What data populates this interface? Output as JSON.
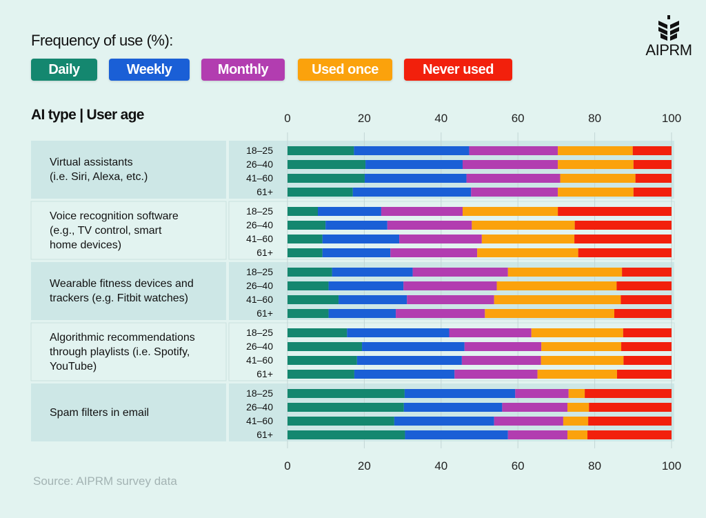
{
  "legend_title": "Frequency of use  (%):",
  "logo_text": "AIPRM",
  "axis_heading": "AI type  |  User age",
  "source": "Source: AIPRM survey data",
  "chart_data": {
    "type": "bar",
    "orientation": "horizontal",
    "stacked": true,
    "xlim": [
      0,
      100
    ],
    "xticks": [
      "0",
      "20",
      "40",
      "60",
      "80",
      "100"
    ],
    "legend_placement": "top-left",
    "series_names": [
      "Daily",
      "Weekly",
      "Monthly",
      "Used once",
      "Never used"
    ],
    "colors": [
      "#14876f",
      "#1a5fd6",
      "#b23db0",
      "#fba20c",
      "#f2200c"
    ],
    "groups": [
      {
        "label": "Virtual assistants (i.e. Siri, Alexa, etc.)",
        "lines": [
          "Virtual assistants",
          "(i.e. Siri, Alexa, etc.)"
        ],
        "rows": [
          {
            "age": "18–25",
            "values": [
              17.3,
              30.0,
              23.1,
              19.5,
              10.1
            ]
          },
          {
            "age": "26–40",
            "values": [
              20.3,
              25.3,
              24.8,
              19.7,
              9.9
            ]
          },
          {
            "age": "41–60",
            "values": [
              20.1,
              26.5,
              24.4,
              19.6,
              9.4
            ]
          },
          {
            "age": "61+",
            "values": [
              17.0,
              30.8,
              22.6,
              19.7,
              9.9
            ]
          }
        ]
      },
      {
        "label": "Voice recognition software (e.g., TV control, smart home devices)",
        "lines": [
          "Voice recognition software",
          "(e.g., TV control, smart",
          "home devices)"
        ],
        "rows": [
          {
            "age": "18–25",
            "values": [
              7.9,
              16.5,
              21.2,
              24.8,
              29.6
            ]
          },
          {
            "age": "26–40",
            "values": [
              9.9,
              16.1,
              22.0,
              26.8,
              25.2
            ]
          },
          {
            "age": "41–60",
            "values": [
              9.1,
              20.0,
              21.5,
              24.1,
              25.3
            ]
          },
          {
            "age": "61+",
            "values": [
              9.1,
              17.7,
              22.6,
              26.3,
              24.3
            ]
          }
        ]
      },
      {
        "label": "Wearable fitness devices and trackers (e.g. Fitbit watches)",
        "lines": [
          "Wearable fitness devices and",
          "trackers (e.g. Fitbit watches)"
        ],
        "rows": [
          {
            "age": "18–25",
            "values": [
              11.6,
              21.0,
              24.8,
              29.7,
              12.9
            ]
          },
          {
            "age": "26–40",
            "values": [
              10.7,
              19.5,
              24.3,
              31.2,
              14.3
            ]
          },
          {
            "age": "41–60",
            "values": [
              13.3,
              17.8,
              22.7,
              33.0,
              13.2
            ]
          },
          {
            "age": "61+",
            "values": [
              10.7,
              17.5,
              23.2,
              33.7,
              14.9
            ]
          }
        ]
      },
      {
        "label": "Algorithmic recommendations through playlists (i.e. Spotify, YouTube)",
        "lines": [
          "Algorithmic recommendations",
          "through playlists (i.e. Spotify,",
          "YouTube)"
        ],
        "rows": [
          {
            "age": "18–25",
            "values": [
              15.5,
              26.6,
              21.4,
              23.9,
              12.6
            ]
          },
          {
            "age": "26–40",
            "values": [
              19.4,
              26.7,
              20.0,
              20.8,
              13.1
            ]
          },
          {
            "age": "41–60",
            "values": [
              18.1,
              27.3,
              20.6,
              21.5,
              12.5
            ]
          },
          {
            "age": "61+",
            "values": [
              17.4,
              26.1,
              21.6,
              20.7,
              14.2
            ]
          }
        ]
      },
      {
        "label": "Spam filters in email",
        "lines": [
          "Spam filters in email"
        ],
        "rows": [
          {
            "age": "18–25",
            "values": [
              30.5,
              28.8,
              13.9,
              4.2,
              22.6
            ]
          },
          {
            "age": "26–40",
            "values": [
              30.3,
              25.6,
              17.0,
              5.6,
              21.5
            ]
          },
          {
            "age": "41–60",
            "values": [
              27.8,
              26.0,
              18.0,
              6.5,
              21.7
            ]
          },
          {
            "age": "61+",
            "values": [
              30.6,
              26.8,
              15.5,
              5.2,
              21.9
            ]
          }
        ]
      }
    ]
  }
}
